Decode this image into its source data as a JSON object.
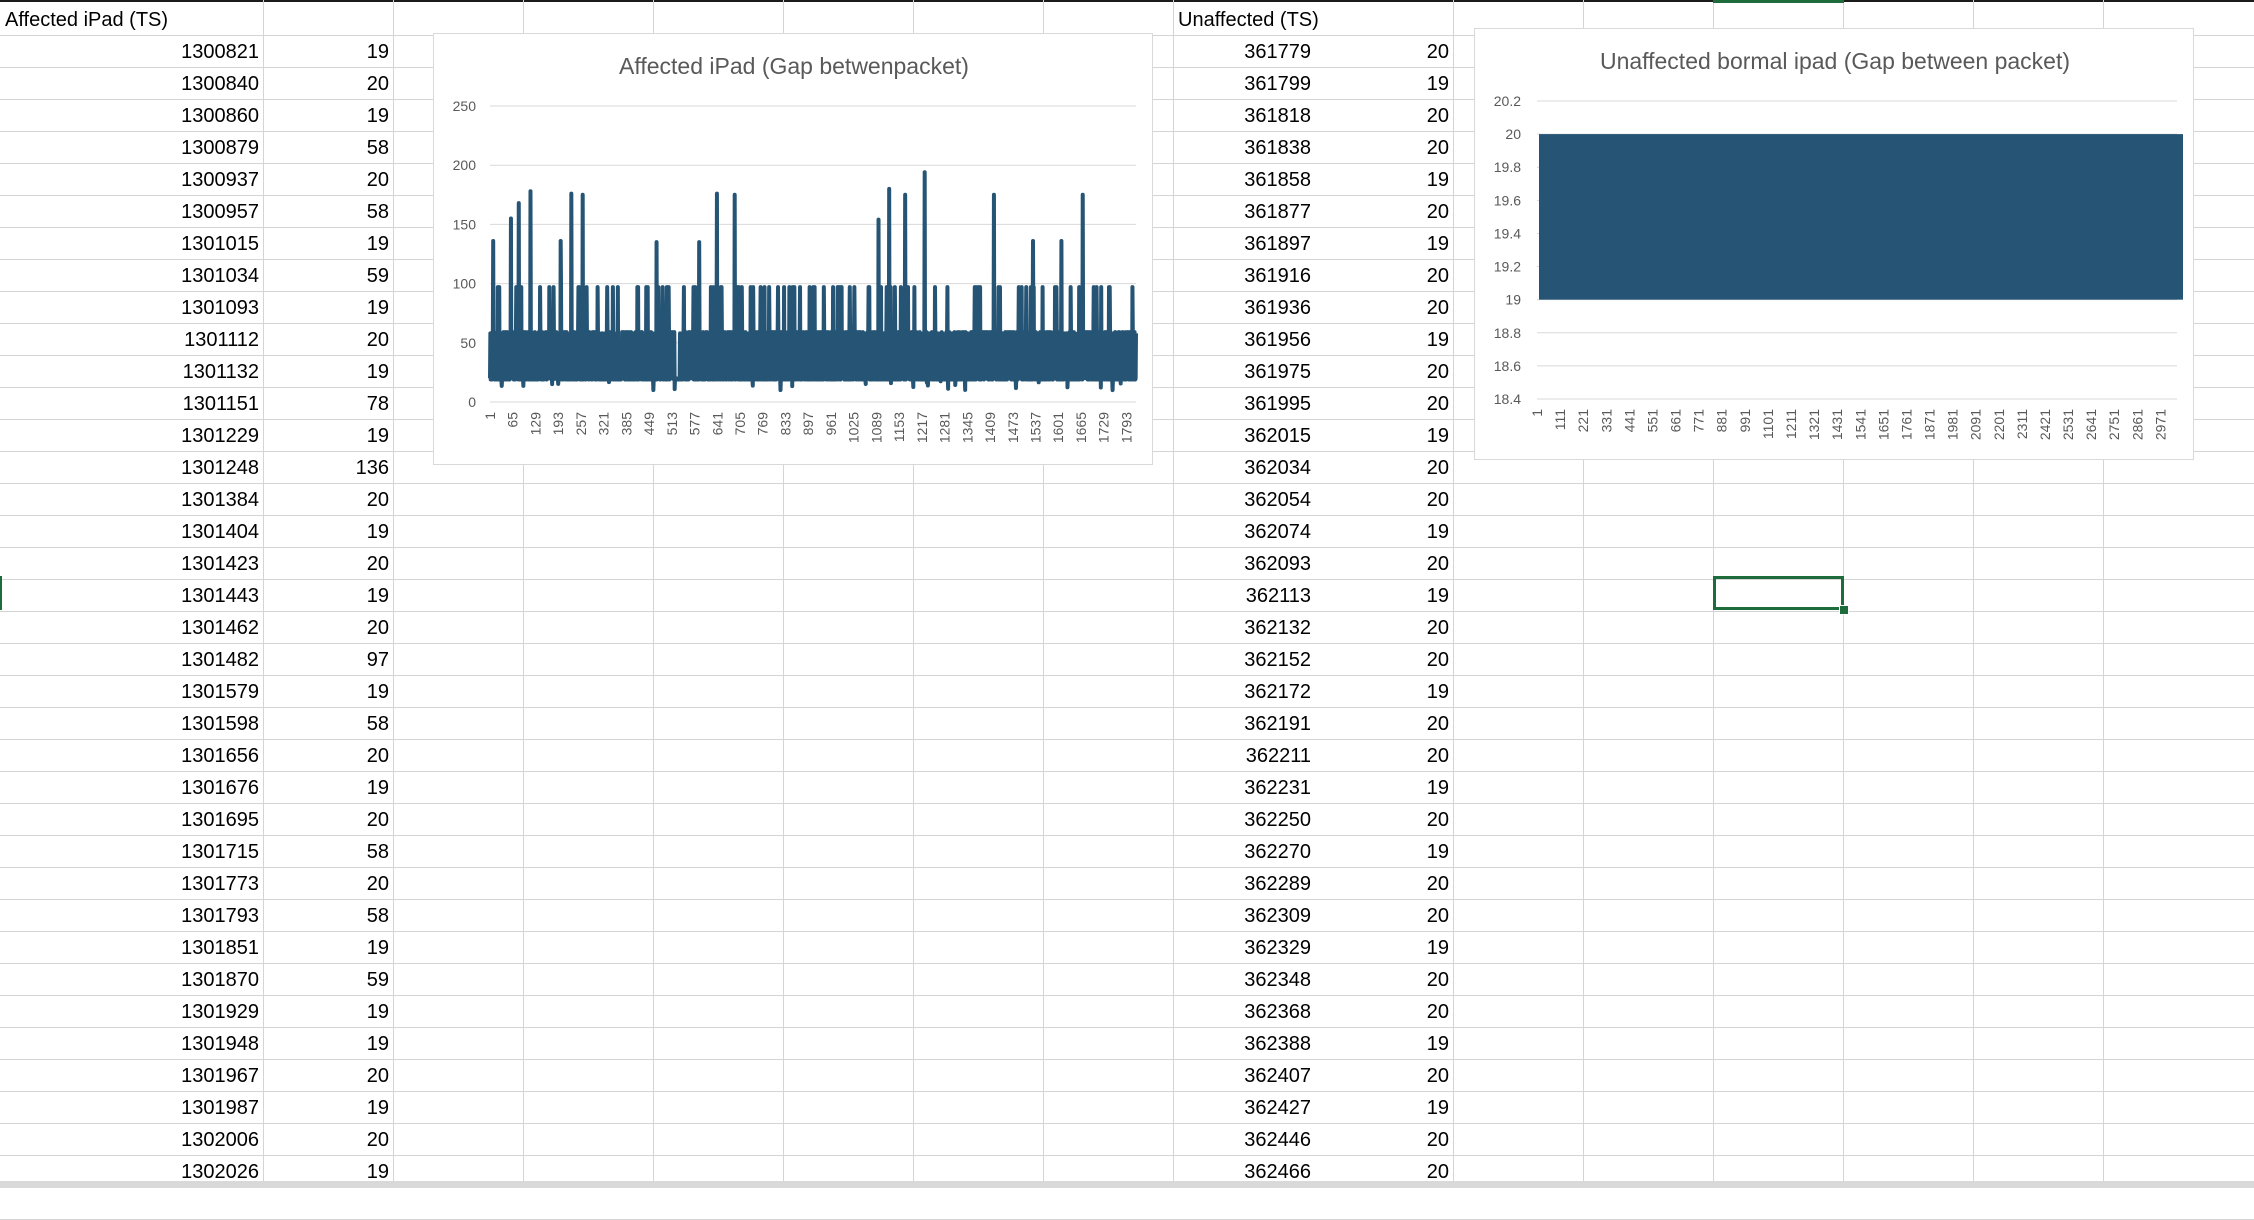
{
  "sheet": {
    "left_table": {
      "header": "Affected iPad (TS)",
      "rows": [
        [
          "1300821",
          "19"
        ],
        [
          "1300840",
          "20"
        ],
        [
          "1300860",
          "19"
        ],
        [
          "1300879",
          "58"
        ],
        [
          "1300937",
          "20"
        ],
        [
          "1300957",
          "58"
        ],
        [
          "1301015",
          "19"
        ],
        [
          "1301034",
          "59"
        ],
        [
          "1301093",
          "19"
        ],
        [
          "1301112",
          "20"
        ],
        [
          "1301132",
          "19"
        ],
        [
          "1301151",
          "78"
        ],
        [
          "1301229",
          "19"
        ],
        [
          "1301248",
          "136"
        ],
        [
          "1301384",
          "20"
        ],
        [
          "1301404",
          "19"
        ],
        [
          "1301423",
          "20"
        ],
        [
          "1301443",
          "19"
        ],
        [
          "1301462",
          "20"
        ],
        [
          "1301482",
          "97"
        ],
        [
          "1301579",
          "19"
        ],
        [
          "1301598",
          "58"
        ],
        [
          "1301656",
          "20"
        ],
        [
          "1301676",
          "19"
        ],
        [
          "1301695",
          "20"
        ],
        [
          "1301715",
          "58"
        ],
        [
          "1301773",
          "20"
        ],
        [
          "1301793",
          "58"
        ],
        [
          "1301851",
          "19"
        ],
        [
          "1301870",
          "59"
        ],
        [
          "1301929",
          "19"
        ],
        [
          "1301948",
          "19"
        ],
        [
          "1301967",
          "20"
        ],
        [
          "1301987",
          "19"
        ],
        [
          "1302006",
          "20"
        ],
        [
          "1302026",
          "19"
        ]
      ]
    },
    "right_table": {
      "header": "Unaffected (TS)",
      "rows": [
        [
          "361779",
          "20"
        ],
        [
          "361799",
          "19"
        ],
        [
          "361818",
          "20"
        ],
        [
          "361838",
          "20"
        ],
        [
          "361858",
          "19"
        ],
        [
          "361877",
          "20"
        ],
        [
          "361897",
          "19"
        ],
        [
          "361916",
          "20"
        ],
        [
          "361936",
          "20"
        ],
        [
          "361956",
          "19"
        ],
        [
          "361975",
          "20"
        ],
        [
          "361995",
          "20"
        ],
        [
          "362015",
          "19"
        ],
        [
          "362034",
          "20"
        ],
        [
          "362054",
          "20"
        ],
        [
          "362074",
          "19"
        ],
        [
          "362093",
          "20"
        ],
        [
          "362113",
          "19"
        ],
        [
          "362132",
          "20"
        ],
        [
          "362152",
          "20"
        ],
        [
          "362172",
          "19"
        ],
        [
          "362191",
          "20"
        ],
        [
          "362211",
          "20"
        ],
        [
          "362231",
          "19"
        ],
        [
          "362250",
          "20"
        ],
        [
          "362270",
          "19"
        ],
        [
          "362289",
          "20"
        ],
        [
          "362309",
          "20"
        ],
        [
          "362329",
          "19"
        ],
        [
          "362348",
          "20"
        ],
        [
          "362368",
          "20"
        ],
        [
          "362388",
          "19"
        ],
        [
          "362407",
          "20"
        ],
        [
          "362427",
          "19"
        ],
        [
          "362446",
          "20"
        ],
        [
          "362466",
          "20"
        ]
      ]
    }
  },
  "chart_data": [
    {
      "type": "line",
      "title": "Affected iPad (Gap betwenpacket)",
      "color": "#255475",
      "ylim": [
        0,
        250
      ],
      "yticks": [
        "250",
        "200",
        "150",
        "100",
        "50",
        "0"
      ],
      "xtick_labels": [
        "1",
        "65",
        "129",
        "193",
        "257",
        "321",
        "385",
        "449",
        "513",
        "577",
        "641",
        "705",
        "769",
        "833",
        "897",
        "961",
        "1025",
        "1089",
        "1153",
        "1217",
        "1281",
        "1345",
        "1409",
        "1473",
        "1537",
        "1601",
        "1665",
        "1729",
        "1793"
      ],
      "x_count": 1820,
      "series": [
        {
          "baseline_range": [
            19,
            20
          ],
          "common_values": [
            19,
            20,
            58,
            59,
            97
          ],
          "spikes": [
            {
              "x": 10,
              "y": 136
            },
            {
              "x": 60,
              "y": 155
            },
            {
              "x": 82,
              "y": 168
            },
            {
              "x": 115,
              "y": 178
            },
            {
              "x": 230,
              "y": 176
            },
            {
              "x": 262,
              "y": 175
            },
            {
              "x": 200,
              "y": 136
            },
            {
              "x": 470,
              "y": 135
            },
            {
              "x": 590,
              "y": 135
            },
            {
              "x": 640,
              "y": 176
            },
            {
              "x": 690,
              "y": 175
            },
            {
              "x": 1095,
              "y": 154
            },
            {
              "x": 1125,
              "y": 180
            },
            {
              "x": 1170,
              "y": 175
            },
            {
              "x": 1225,
              "y": 194
            },
            {
              "x": 1420,
              "y": 175
            },
            {
              "x": 1670,
              "y": 175
            },
            {
              "x": 1610,
              "y": 136
            },
            {
              "x": 1530,
              "y": 136
            }
          ]
        }
      ]
    },
    {
      "type": "area",
      "title": "Unaffected bormal ipad (Gap between packet)",
      "color": "#255475",
      "ylim": [
        18.4,
        20.2
      ],
      "yticks": [
        "20.2",
        "20",
        "19.8",
        "19.6",
        "19.4",
        "19.2",
        "19",
        "18.8",
        "18.6",
        "18.4"
      ],
      "xtick_labels": [
        "1",
        "111",
        "221",
        "331",
        "441",
        "551",
        "661",
        "771",
        "881",
        "991",
        "1101",
        "1211",
        "1321",
        "1431",
        "1541",
        "1651",
        "1761",
        "1871",
        "1981",
        "2091",
        "2201",
        "2311",
        "2421",
        "2531",
        "2641",
        "2751",
        "2861",
        "2971"
      ],
      "x_count": 3050,
      "series": [
        {
          "values_range": [
            19,
            20
          ]
        }
      ]
    }
  ]
}
